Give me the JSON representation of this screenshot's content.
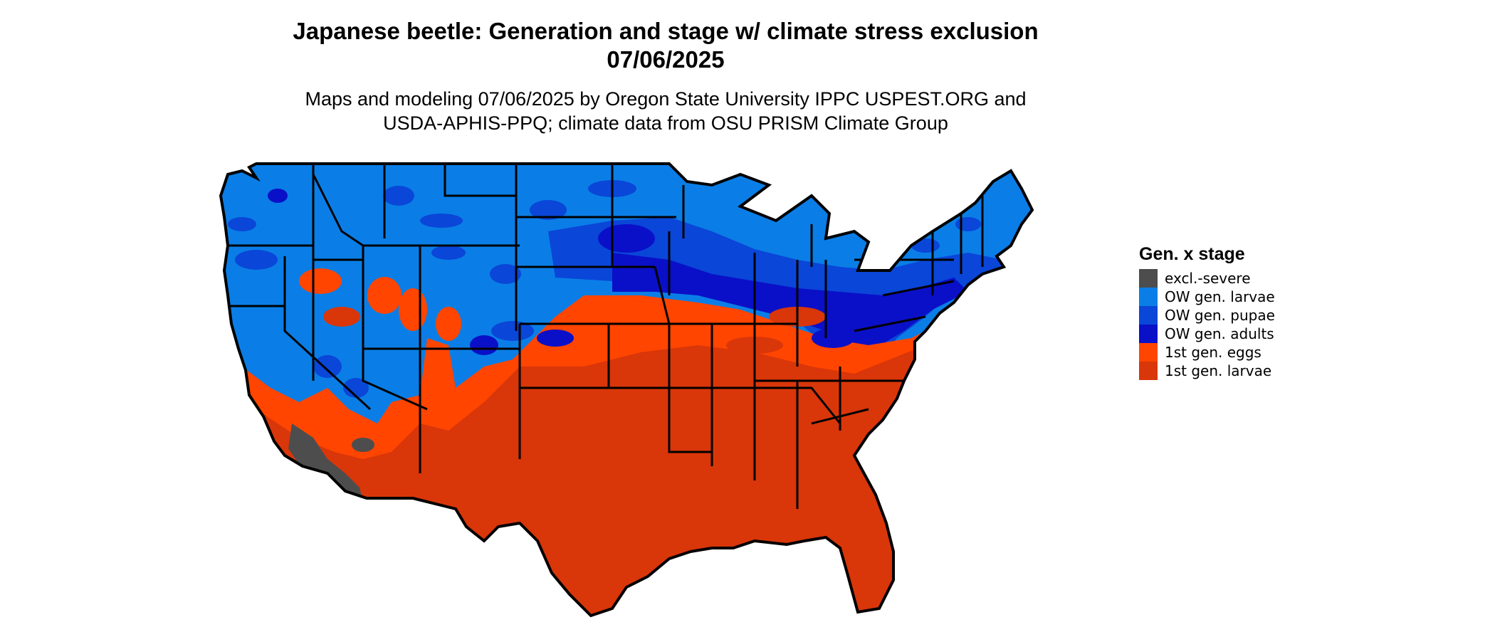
{
  "title": {
    "line1": "Japanese beetle: Generation and stage w/ climate stress exclusion",
    "line2": "07/06/2025"
  },
  "subtitle": {
    "line1": "Maps and modeling 07/06/2025 by Oregon State University IPPC USPEST.ORG and",
    "line2": "USDA-APHIS-PPQ; climate data from OSU PRISM Climate Group"
  },
  "legend": {
    "title": "Gen. x stage",
    "items": [
      {
        "label": "excl.-severe",
        "color": "#4d4d4d"
      },
      {
        "label": "OW gen. larvae",
        "color": "#0a7ee6"
      },
      {
        "label": "OW gen. pupae",
        "color": "#0a46d8"
      },
      {
        "label": "OW gen. adults",
        "color": "#0a10c8"
      },
      {
        "label": "1st gen. eggs",
        "color": "#ff4500"
      },
      {
        "label": "1st gen. larvae",
        "color": "#d9360a"
      }
    ]
  },
  "map": {
    "region": "Contiguous United States",
    "border_color": "#000000"
  }
}
